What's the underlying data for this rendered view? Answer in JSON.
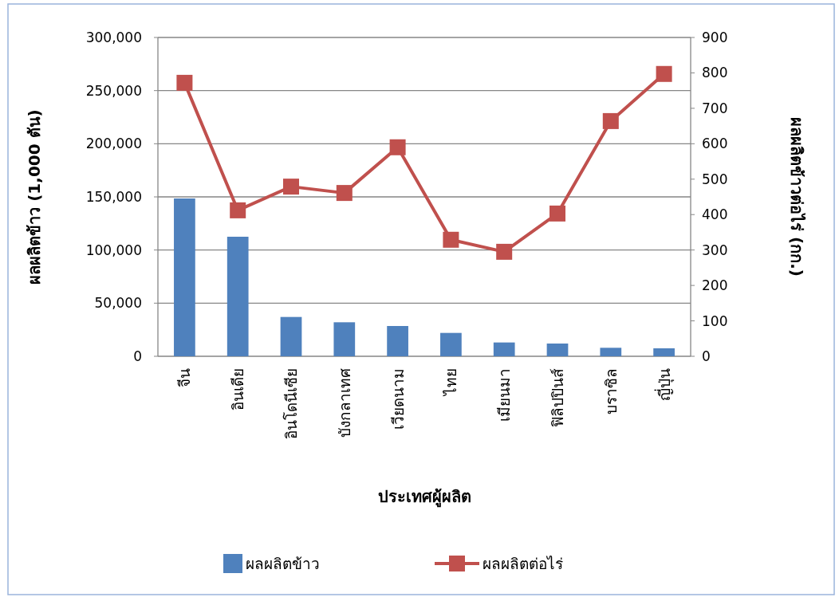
{
  "chart_data": {
    "type": "bar",
    "categories": [
      "จีน",
      "อินเดีย",
      "อินโดนีเซีย",
      "บังกลาเทศ",
      "เวียดนาม",
      "ไทย",
      "เมียนมา",
      "ฟิลิปปินส์",
      "บราซิล",
      "ญี่ปุ่น"
    ],
    "series": [
      {
        "name": "ผลผลิตข้าว",
        "color": "#4f81bd",
        "values": [
          148500,
          112500,
          37000,
          32000,
          28500,
          22000,
          13000,
          12000,
          8000,
          7500
        ]
      },
      {
        "name": "ผลผลิตต่อไร่",
        "type": "line",
        "axis": "y2",
        "color": "#c0504d",
        "marker": "square",
        "values": [
          772,
          412,
          479,
          461,
          590,
          329,
          295,
          403,
          664,
          797
        ]
      }
    ],
    "xlabel": "ประเทศผู้ผลิต",
    "ylabel": "ผลผลิตข้าว (1,000 ตัน)",
    "y2label": "ผลผลิตข้าวต่อไร่ (กก.)",
    "ylim": [
      0,
      300000
    ],
    "yticks": [
      0,
      {
        "value": 50000,
        "label": "50,000"
      },
      {
        "value": 100000,
        "label": "100,000"
      },
      {
        "value": 150000,
        "label": "150,000"
      },
      {
        "value": 200000,
        "label": "200,000"
      },
      {
        "value": 250000,
        "label": "250,000"
      },
      {
        "value": 300000,
        "label": "300,000"
      }
    ],
    "y2lim": [
      0,
      900
    ],
    "y2ticks": [
      0,
      100,
      200,
      300,
      400,
      500,
      600,
      700,
      800,
      900
    ],
    "grid": "y",
    "legend": "bottom"
  }
}
